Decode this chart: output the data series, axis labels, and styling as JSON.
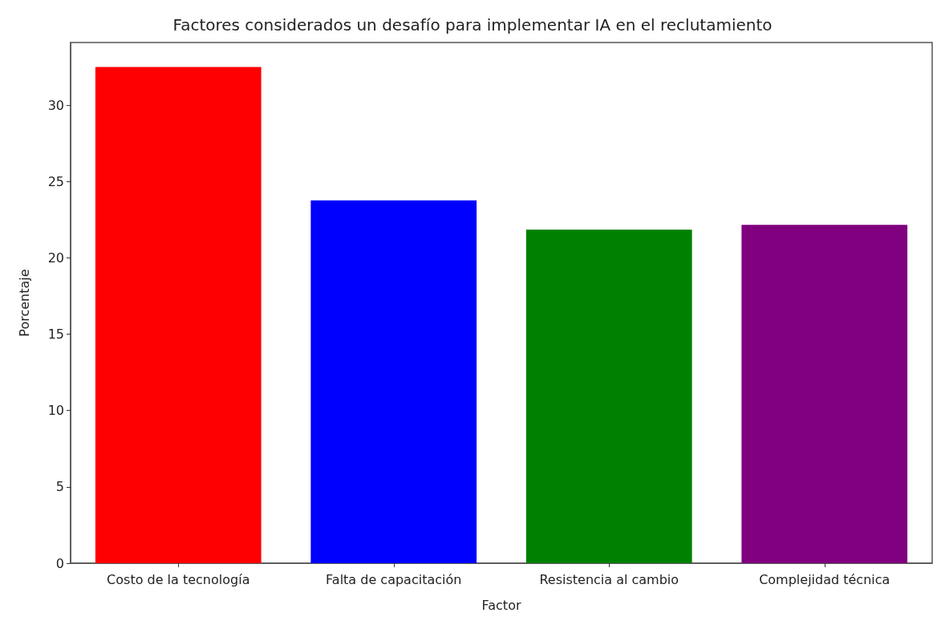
{
  "chart_data": {
    "type": "bar",
    "title": "Factores considerados un desafío para implementar IA en el reclutamiento",
    "xlabel": "Factor",
    "ylabel": "Porcentaje",
    "categories": [
      "Costo de la tecnología",
      "Falta de capacitación",
      "Resistencia al cambio",
      "Complejidad técnica"
    ],
    "values": [
      32.5,
      23.76,
      21.84,
      22.16
    ],
    "colors": [
      "#ff0000",
      "#0000ff",
      "#008000",
      "#800080"
    ],
    "ylim": [
      0,
      34.1
    ],
    "yticks": [
      0,
      5,
      10,
      15,
      20,
      25,
      30
    ],
    "grid": false
  }
}
